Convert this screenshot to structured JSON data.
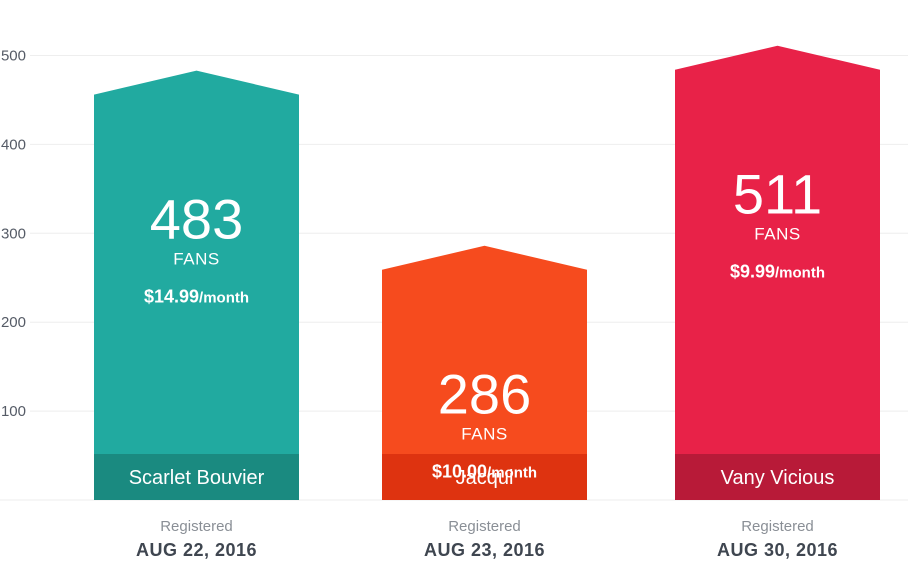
{
  "chart_data": {
    "type": "bar",
    "ylim": [
      0,
      500
    ],
    "y_ticks": [
      "100",
      "200",
      "300",
      "400",
      "500"
    ],
    "grid": true,
    "categories": [
      "Scarlet Bouvier",
      "Jacqui",
      "Vany Vicious"
    ],
    "values": [
      483,
      286,
      511
    ],
    "bars": [
      {
        "name": "Scarlet Bouvier",
        "value": 483,
        "value_label": "483",
        "unit_label": "FANS",
        "price": "$14.99",
        "price_suffix": "/month",
        "registered_label": "Registered",
        "registered_date": "AUG 22, 2016",
        "color": "#21aaa0",
        "label_band_color": "#1a8a80"
      },
      {
        "name": "Jacqui",
        "value": 286,
        "value_label": "286",
        "unit_label": "FANS",
        "price": "$10.00",
        "price_suffix": "/month",
        "registered_label": "Registered",
        "registered_date": "AUG 23, 2016",
        "color": "#f64b1e",
        "label_band_color": "#de3310"
      },
      {
        "name": "Vany Vicious",
        "value": 511,
        "value_label": "511",
        "unit_label": "FANS",
        "price": "$9.99",
        "price_suffix": "/month",
        "registered_label": "Registered",
        "registered_date": "AUG 30, 2016",
        "color": "#e82248",
        "label_band_color": "#b81a38"
      }
    ]
  }
}
